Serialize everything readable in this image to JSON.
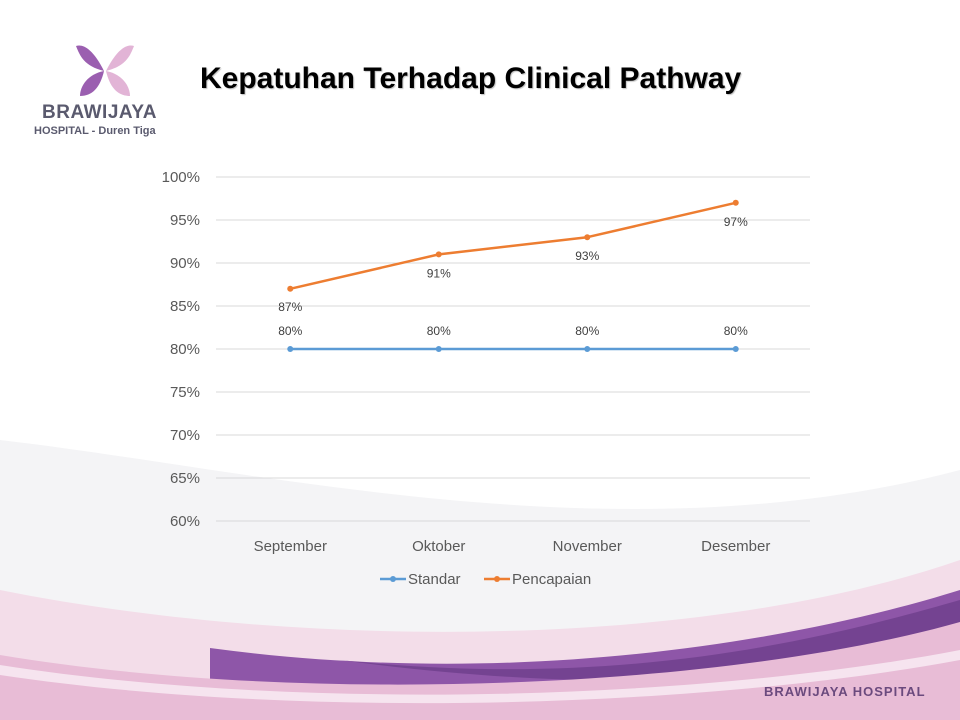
{
  "logo": {
    "name": "BRAWIJAYA",
    "subtitle": "HOSPITAL - Duren Tiga",
    "colors": {
      "left_wing": "#9b5fb0",
      "right_wing": "#e2b4d6"
    }
  },
  "slide_title": "Kepatuhan Terhadap Clinical Pathway",
  "footer_brand": "BRAWIJAYA HOSPITAL",
  "colors": {
    "wave_purple": "#8e56a8",
    "wave_pink": "#e8bcd6",
    "standar": "#5b9bd5",
    "pencapaian": "#ed7d31",
    "grid": "#d9d9d9"
  },
  "chart_data": {
    "type": "line",
    "title": "Kepatuhan Terhadap Clinical Pathway",
    "categories": [
      "September",
      "Oktober",
      "November",
      "Desember"
    ],
    "series": [
      {
        "name": "Standar",
        "values": [
          0.8,
          0.8,
          0.8,
          0.8
        ],
        "labels": [
          "80%",
          "80%",
          "80%",
          "80%"
        ],
        "color": "#5b9bd5"
      },
      {
        "name": "Pencapaian",
        "values": [
          0.87,
          0.91,
          0.93,
          0.97
        ],
        "labels": [
          "87%",
          "91%",
          "93%",
          "97%"
        ],
        "color": "#ed7d31"
      }
    ],
    "ylim": [
      0.6,
      1.0
    ],
    "yticks": [
      "60%",
      "65%",
      "70%",
      "75%",
      "80%",
      "85%",
      "90%",
      "95%",
      "100%"
    ],
    "grid": true,
    "legend": "bottom"
  }
}
